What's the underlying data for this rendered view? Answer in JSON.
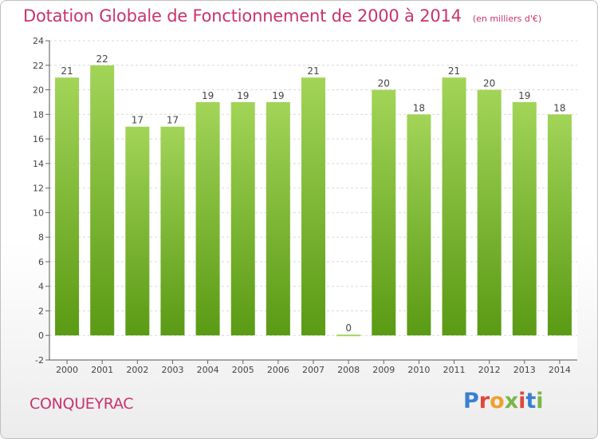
{
  "title": "Dotation Globale de Fonctionnement de 2000 à 2014",
  "unit_note": "(en milliers d'€)",
  "commune": "CONQUEYRAC",
  "logo": {
    "text": "Proxiti",
    "letter_colors": [
      "#3a7fd0",
      "#e0473a",
      "#f0a030",
      "#7ab648",
      "#e0473a",
      "#3a7fd0",
      "#7ab648"
    ]
  },
  "colors": {
    "title": "#c8336e",
    "bar_top": "#a2d458",
    "bar_bottom": "#5a9a14",
    "label": "#444444"
  },
  "chart_data": {
    "type": "bar",
    "categories": [
      "2000",
      "2001",
      "2002",
      "2003",
      "2004",
      "2005",
      "2006",
      "2007",
      "2008",
      "2009",
      "2010",
      "2011",
      "2012",
      "2013",
      "2014"
    ],
    "values": [
      21,
      22,
      17,
      17,
      19,
      19,
      19,
      21,
      0,
      20,
      18,
      21,
      20,
      19,
      18
    ],
    "title": "Dotation Globale de Fonctionnement de 2000 à 2014",
    "ylim": [
      -2,
      24
    ],
    "yticks": [
      -2,
      0,
      2,
      4,
      6,
      8,
      10,
      12,
      14,
      16,
      18,
      20,
      22,
      24
    ],
    "grid": true,
    "data_labels": true
  }
}
